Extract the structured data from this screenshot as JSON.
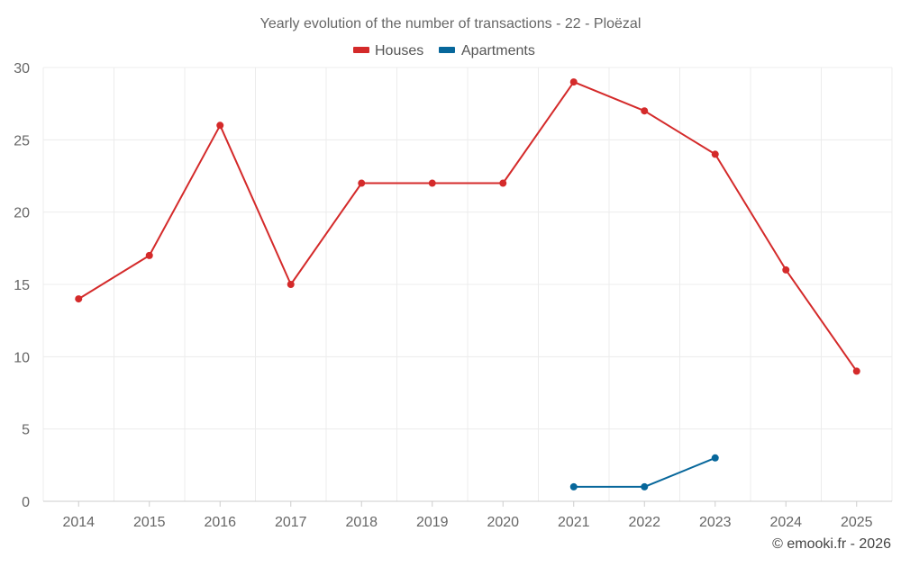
{
  "chart_data": {
    "type": "line",
    "title": "Yearly evolution of the number of transactions - 22 - Ploëzal",
    "categories": [
      "2014",
      "2015",
      "2016",
      "2017",
      "2018",
      "2019",
      "2020",
      "2021",
      "2022",
      "2023",
      "2024",
      "2025"
    ],
    "series": [
      {
        "name": "Houses",
        "color": "#d42a2a",
        "values": [
          14,
          17,
          26,
          15,
          22,
          22,
          22,
          29,
          27,
          24,
          16,
          9
        ]
      },
      {
        "name": "Apartments",
        "color": "#07679b",
        "values": [
          null,
          null,
          null,
          null,
          null,
          null,
          null,
          1,
          1,
          3,
          null,
          null
        ]
      }
    ],
    "ylim": [
      0,
      30
    ],
    "yticks": [
      0,
      5,
      10,
      15,
      20,
      25,
      30
    ],
    "grid": true,
    "legend_position": "top-center",
    "credit": "© emooki.fr - 2026"
  }
}
